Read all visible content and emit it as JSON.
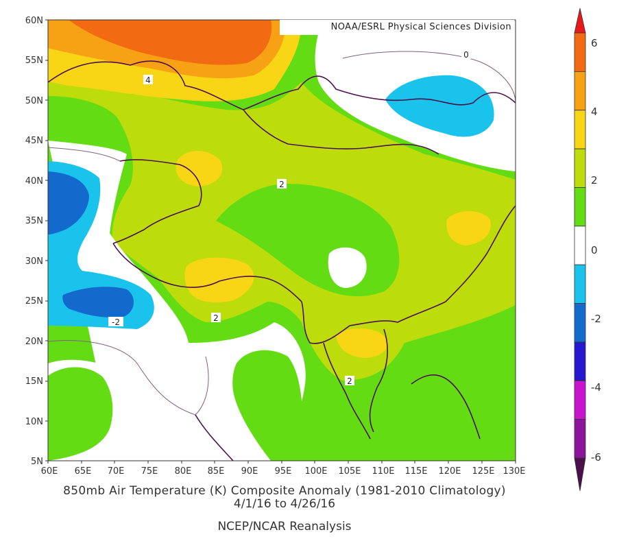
{
  "credit": "NOAA/ESRL Physical Sciences Division",
  "caption": {
    "title": "850mb Air Temperature (K) Composite Anomaly (1981-2010 Climatology)",
    "dates": "4/1/16   to 4/26/16",
    "source": "NCEP/NCAR Reanalysis"
  },
  "axes": {
    "lat_labels": [
      "60N",
      "55N",
      "50N",
      "45N",
      "40N",
      "35N",
      "30N",
      "25N",
      "20N",
      "15N",
      "10N",
      "5N"
    ],
    "lon_labels": [
      "60E",
      "65E",
      "70E",
      "75E",
      "80E",
      "85E",
      "90E",
      "95E",
      "100E",
      "105E",
      "110E",
      "115E",
      "120E",
      "125E",
      "130E"
    ]
  },
  "colorbar": {
    "labels": [
      "6",
      "4",
      "2",
      "0",
      "-2",
      "-4",
      "-6"
    ],
    "colors": [
      "#e8191a",
      "#f26a12",
      "#f7a215",
      "#f8d515",
      "#bcdc0c",
      "#64dc14",
      "#ffffff",
      "#19c3ec",
      "#1469cd",
      "#2619cd",
      "#c815cd",
      "#8c149a",
      "#4b0f4b"
    ]
  },
  "contour_labels": [
    "4",
    "0",
    "2",
    "2",
    "-2",
    "2"
  ]
}
